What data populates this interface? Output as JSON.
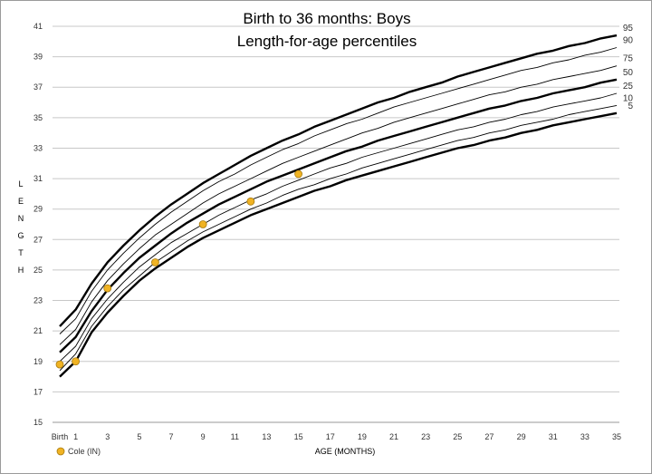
{
  "chart_data": {
    "type": "line",
    "title": "Birth to 36 months: Boys",
    "subtitle": "Length-for-age percentiles",
    "xlabel": "AGE (MONTHS)",
    "ylabel": "LENGTH",
    "xlim": [
      0,
      35
    ],
    "ylim": [
      15,
      41
    ],
    "y_ticks": [
      15,
      17,
      19,
      21,
      23,
      25,
      27,
      29,
      31,
      33,
      35,
      37,
      39,
      41
    ],
    "x_tick_values": [
      0,
      1,
      3,
      5,
      7,
      9,
      11,
      13,
      15,
      17,
      19,
      21,
      23,
      25,
      27,
      29,
      31,
      33,
      35
    ],
    "x_tick_labels": [
      "Birth",
      "1",
      "3",
      "5",
      "7",
      "9",
      "11",
      "13",
      "15",
      "17",
      "19",
      "21",
      "23",
      "25",
      "27",
      "29",
      "31",
      "33",
      "35"
    ],
    "grid": true,
    "legend": {
      "position": "bottom-left",
      "label": "Cole (IN)",
      "color": "#f0b323"
    },
    "x": [
      0,
      1,
      2,
      3,
      4,
      5,
      6,
      7,
      8,
      9,
      10,
      11,
      12,
      13,
      14,
      15,
      16,
      17,
      18,
      19,
      20,
      21,
      22,
      23,
      24,
      25,
      26,
      27,
      28,
      29,
      30,
      31,
      32,
      33,
      34,
      35
    ],
    "series": [
      {
        "name": "95",
        "bold": true,
        "values": [
          21.3,
          22.4,
          24.1,
          25.5,
          26.6,
          27.6,
          28.5,
          29.3,
          30.0,
          30.7,
          31.3,
          31.9,
          32.5,
          33.0,
          33.5,
          33.9,
          34.4,
          34.8,
          35.2,
          35.6,
          36.0,
          36.3,
          36.7,
          37.0,
          37.3,
          37.7,
          38.0,
          38.3,
          38.6,
          38.9,
          39.2,
          39.4,
          39.7,
          39.9,
          40.2,
          40.4
        ]
      },
      {
        "name": "90",
        "bold": false,
        "values": [
          20.8,
          21.8,
          23.6,
          25.0,
          26.1,
          27.1,
          28.0,
          28.8,
          29.5,
          30.2,
          30.8,
          31.3,
          31.9,
          32.4,
          32.9,
          33.3,
          33.8,
          34.2,
          34.6,
          34.9,
          35.3,
          35.7,
          36.0,
          36.3,
          36.6,
          36.9,
          37.2,
          37.5,
          37.8,
          38.1,
          38.3,
          38.6,
          38.8,
          39.1,
          39.3,
          39.6
        ]
      },
      {
        "name": "75",
        "bold": false,
        "values": [
          20.1,
          21.1,
          22.9,
          24.3,
          25.4,
          26.4,
          27.3,
          28.0,
          28.7,
          29.4,
          30.0,
          30.5,
          31.0,
          31.5,
          32.0,
          32.4,
          32.8,
          33.2,
          33.6,
          34.0,
          34.3,
          34.7,
          35.0,
          35.3,
          35.6,
          35.9,
          36.2,
          36.5,
          36.7,
          37.0,
          37.2,
          37.5,
          37.7,
          37.9,
          38.1,
          38.4
        ]
      },
      {
        "name": "50",
        "bold": true,
        "values": [
          19.6,
          20.6,
          22.3,
          23.7,
          24.8,
          25.8,
          26.6,
          27.4,
          28.1,
          28.7,
          29.3,
          29.8,
          30.3,
          30.8,
          31.2,
          31.6,
          32.0,
          32.4,
          32.8,
          33.1,
          33.5,
          33.8,
          34.1,
          34.4,
          34.7,
          35.0,
          35.3,
          35.6,
          35.8,
          36.1,
          36.3,
          36.6,
          36.8,
          37.0,
          37.3,
          37.5
        ]
      },
      {
        "name": "25",
        "bold": false,
        "values": [
          19.0,
          20.0,
          21.8,
          23.1,
          24.2,
          25.2,
          26.0,
          26.8,
          27.4,
          28.0,
          28.6,
          29.1,
          29.6,
          30.0,
          30.5,
          30.9,
          31.3,
          31.7,
          32.0,
          32.4,
          32.7,
          33.0,
          33.3,
          33.6,
          33.9,
          34.2,
          34.4,
          34.7,
          34.9,
          35.2,
          35.4,
          35.7,
          35.9,
          36.1,
          36.3,
          36.6
        ]
      },
      {
        "name": "10",
        "bold": false,
        "values": [
          18.4,
          19.5,
          21.3,
          22.6,
          23.7,
          24.6,
          25.5,
          26.2,
          26.9,
          27.5,
          28.0,
          28.5,
          29.0,
          29.4,
          29.9,
          30.3,
          30.6,
          31.0,
          31.3,
          31.7,
          32.0,
          32.3,
          32.6,
          32.9,
          33.2,
          33.5,
          33.7,
          34.0,
          34.2,
          34.5,
          34.7,
          34.9,
          35.2,
          35.4,
          35.6,
          35.8
        ]
      },
      {
        "name": "5",
        "bold": true,
        "values": [
          18.0,
          19.0,
          20.9,
          22.2,
          23.3,
          24.3,
          25.1,
          25.8,
          26.5,
          27.1,
          27.6,
          28.1,
          28.6,
          29.0,
          29.4,
          29.8,
          30.2,
          30.5,
          30.9,
          31.2,
          31.5,
          31.8,
          32.1,
          32.4,
          32.7,
          33.0,
          33.2,
          33.5,
          33.7,
          34.0,
          34.2,
          34.5,
          34.7,
          34.9,
          35.1,
          35.3
        ]
      }
    ],
    "points": {
      "name": "Cole (IN)",
      "x": [
        0,
        1,
        3,
        6,
        9,
        12,
        15
      ],
      "y": [
        18.8,
        19.0,
        23.8,
        25.5,
        28.0,
        29.5,
        31.3
      ]
    }
  }
}
